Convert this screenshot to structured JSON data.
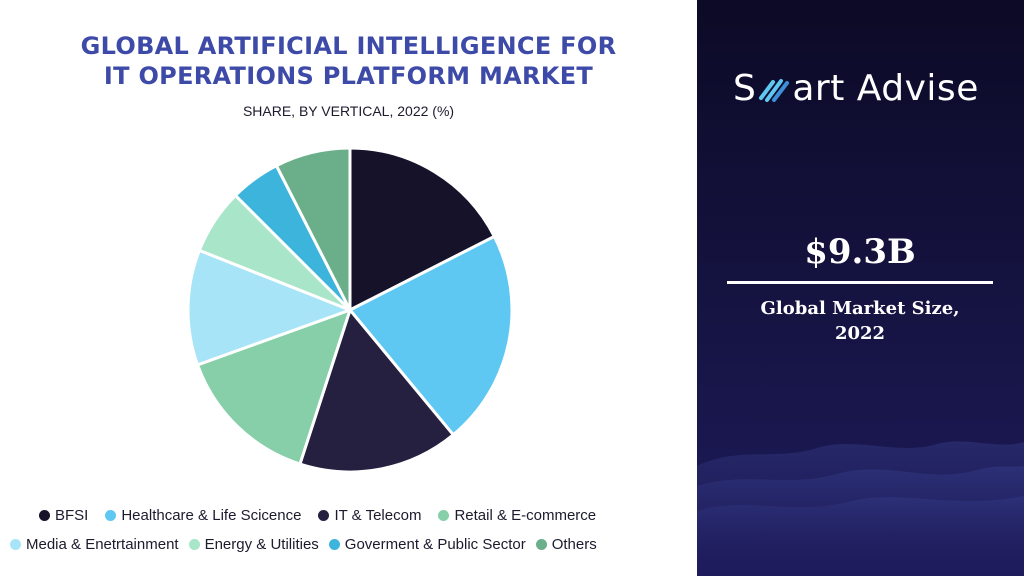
{
  "chart_data": {
    "type": "pie",
    "title_lines": [
      "GLOBAL ARTIFICIAL INTELLIGENCE FOR",
      "IT OPERATIONS PLATFORM MARKET"
    ],
    "subtitle": "SHARE, BY VERTICAL, 2022 (%)",
    "categories": [
      "BFSI",
      "Healthcare & Life Scicence",
      "IT & Telecom",
      "Retail & E-commerce",
      "Media & Enetrtainment",
      "Energy & Utilities",
      "Goverment & Public Sector",
      "Others"
    ],
    "values": [
      17.5,
      21.5,
      16.0,
      14.5,
      11.5,
      6.5,
      5.0,
      7.5
    ],
    "colors": [
      "#15122a",
      "#5ec8f2",
      "#25203f",
      "#86cfa9",
      "#a8e4f7",
      "#a9e5c9",
      "#3cb4dc",
      "#6aaf8a"
    ],
    "start_angle_deg": 0,
    "direction": "clockwise",
    "legend_position": "bottom"
  },
  "sidebar": {
    "brand_prefix": "S",
    "brand_suffix": "art Advise",
    "brand_icon": "striped-m-icon",
    "market_value": "$9.3B",
    "caption_lines": [
      "Global Market Size,",
      "2022"
    ]
  }
}
